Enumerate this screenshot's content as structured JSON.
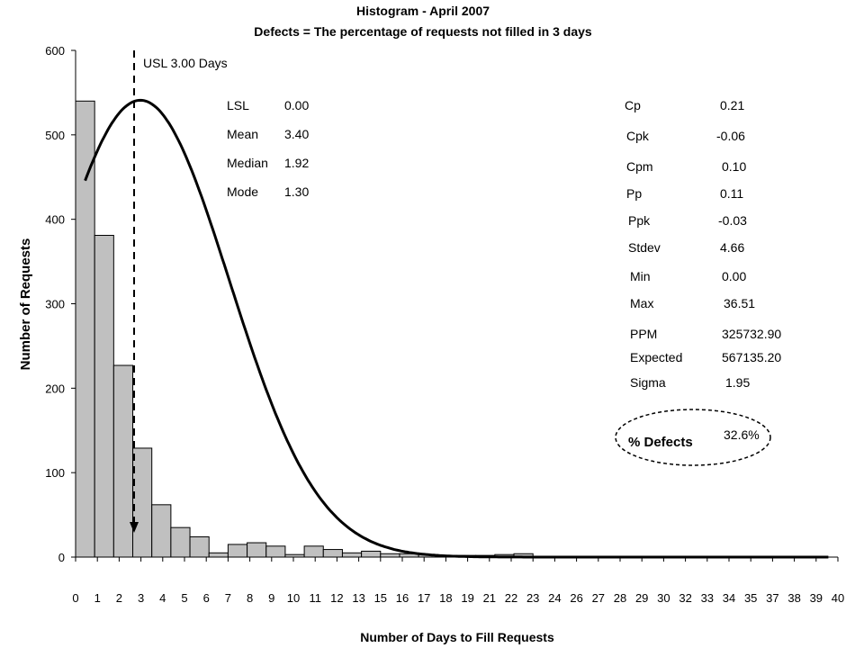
{
  "chart_data": {
    "type": "bar",
    "title": "Histogram - April 2007",
    "subtitle": "Defects = The percentage of requests not filled in 3 days",
    "xlabel": "Number of Days to Fill Requests",
    "ylabel": "Number of Requests",
    "ylim": [
      0,
      600
    ],
    "yticks": [
      0,
      100,
      200,
      300,
      400,
      500,
      600
    ],
    "xlim": [
      0,
      40
    ],
    "xticks": [
      "0",
      "1",
      "2",
      "3",
      "4",
      "5",
      "6",
      "7",
      "8",
      "9",
      "10",
      "11",
      "12",
      "13",
      "15",
      "16",
      "17",
      "18",
      "19",
      "21",
      "22",
      "23",
      "24",
      "26",
      "27",
      "28",
      "29",
      "30",
      "32",
      "33",
      "34",
      "35",
      "37",
      "38",
      "39",
      "40"
    ],
    "bins": {
      "start": 0,
      "width": 1,
      "values": [
        540,
        381,
        227,
        129,
        62,
        35,
        24,
        5,
        15,
        17,
        13,
        3,
        13,
        9,
        5,
        7,
        4,
        4,
        3,
        2,
        2,
        2,
        3,
        4,
        0,
        0,
        0,
        0,
        0,
        0,
        0,
        0,
        0,
        0,
        0,
        0,
        0,
        0,
        0,
        0
      ]
    },
    "normal_curve": {
      "mean": 3.4,
      "stdev": 4.66,
      "peak": 541,
      "x_start": 0.5,
      "x_end": 39.6
    },
    "usl": {
      "value": 3.0,
      "label": "USL 3.00 Days"
    },
    "grid": false,
    "legend": "none"
  },
  "stats_left": [
    {
      "label": "LSL",
      "value": "0.00"
    },
    {
      "label": "Mean",
      "value": "3.40"
    },
    {
      "label": "Median",
      "value": "1.92"
    },
    {
      "label": "Mode",
      "value": "1.30"
    }
  ],
  "stats_right": [
    {
      "label": "Cp",
      "value": "0.21"
    },
    {
      "label": "Cpk",
      "value": "-0.06"
    },
    {
      "label": "Cpm",
      "value": "0.10"
    },
    {
      "label": "Pp",
      "value": "0.11"
    },
    {
      "label": "Ppk",
      "value": "-0.03"
    },
    {
      "label": "Stdev",
      "value": "4.66"
    },
    {
      "label": "Min",
      "value": "0.00"
    },
    {
      "label": "Max",
      "value": "36.51"
    },
    {
      "label": "PPM",
      "value": "325732.90"
    },
    {
      "label": "Expected",
      "value": "567135.20"
    },
    {
      "label": "Sigma",
      "value": "1.95"
    }
  ],
  "defects": {
    "label": "% Defects",
    "value": "32.6%"
  },
  "colors": {
    "bar_fill": "#c0c0c0",
    "bar_stroke": "#000000",
    "curve": "#000000"
  }
}
